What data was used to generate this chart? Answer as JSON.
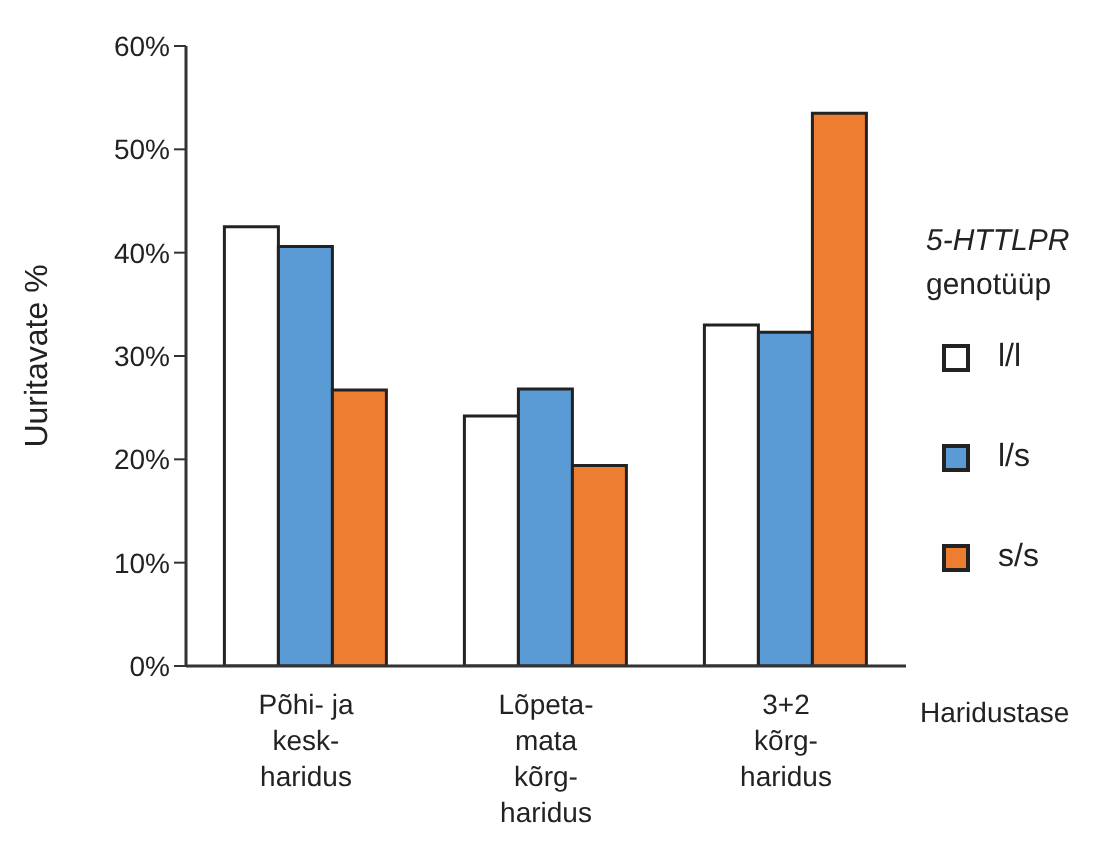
{
  "chart_data": {
    "type": "bar",
    "ylabel": "Uuritavate %",
    "xlabel": "Haridustase",
    "legend_title": "5-HTTLPR\ngenotüüp",
    "categories": [
      "Põhi- ja\nkesk-\nharidus",
      "Lõpeta-\nmata\nkõrg-\nharidus",
      "3+2\nkõrg-\nharidus"
    ],
    "series": [
      {
        "name": "l/l",
        "color": "#ffffff",
        "values": [
          42.5,
          24.2,
          33.0
        ]
      },
      {
        "name": "l/s",
        "color": "#5b9bd5",
        "values": [
          40.6,
          26.8,
          32.3
        ]
      },
      {
        "name": "s/s",
        "color": "#ed7d31",
        "values": [
          26.7,
          19.4,
          53.5
        ]
      }
    ],
    "ylim": [
      0,
      60
    ],
    "yticks": [
      {
        "value": 0,
        "label": "0%"
      },
      {
        "value": 10,
        "label": "10%"
      },
      {
        "value": 20,
        "label": "20%"
      },
      {
        "value": 30,
        "label": "30%"
      },
      {
        "value": 40,
        "label": "40%"
      },
      {
        "value": 50,
        "label": "50%"
      },
      {
        "value": 60,
        "label": "60%"
      }
    ],
    "grid": false,
    "legend": "right"
  }
}
